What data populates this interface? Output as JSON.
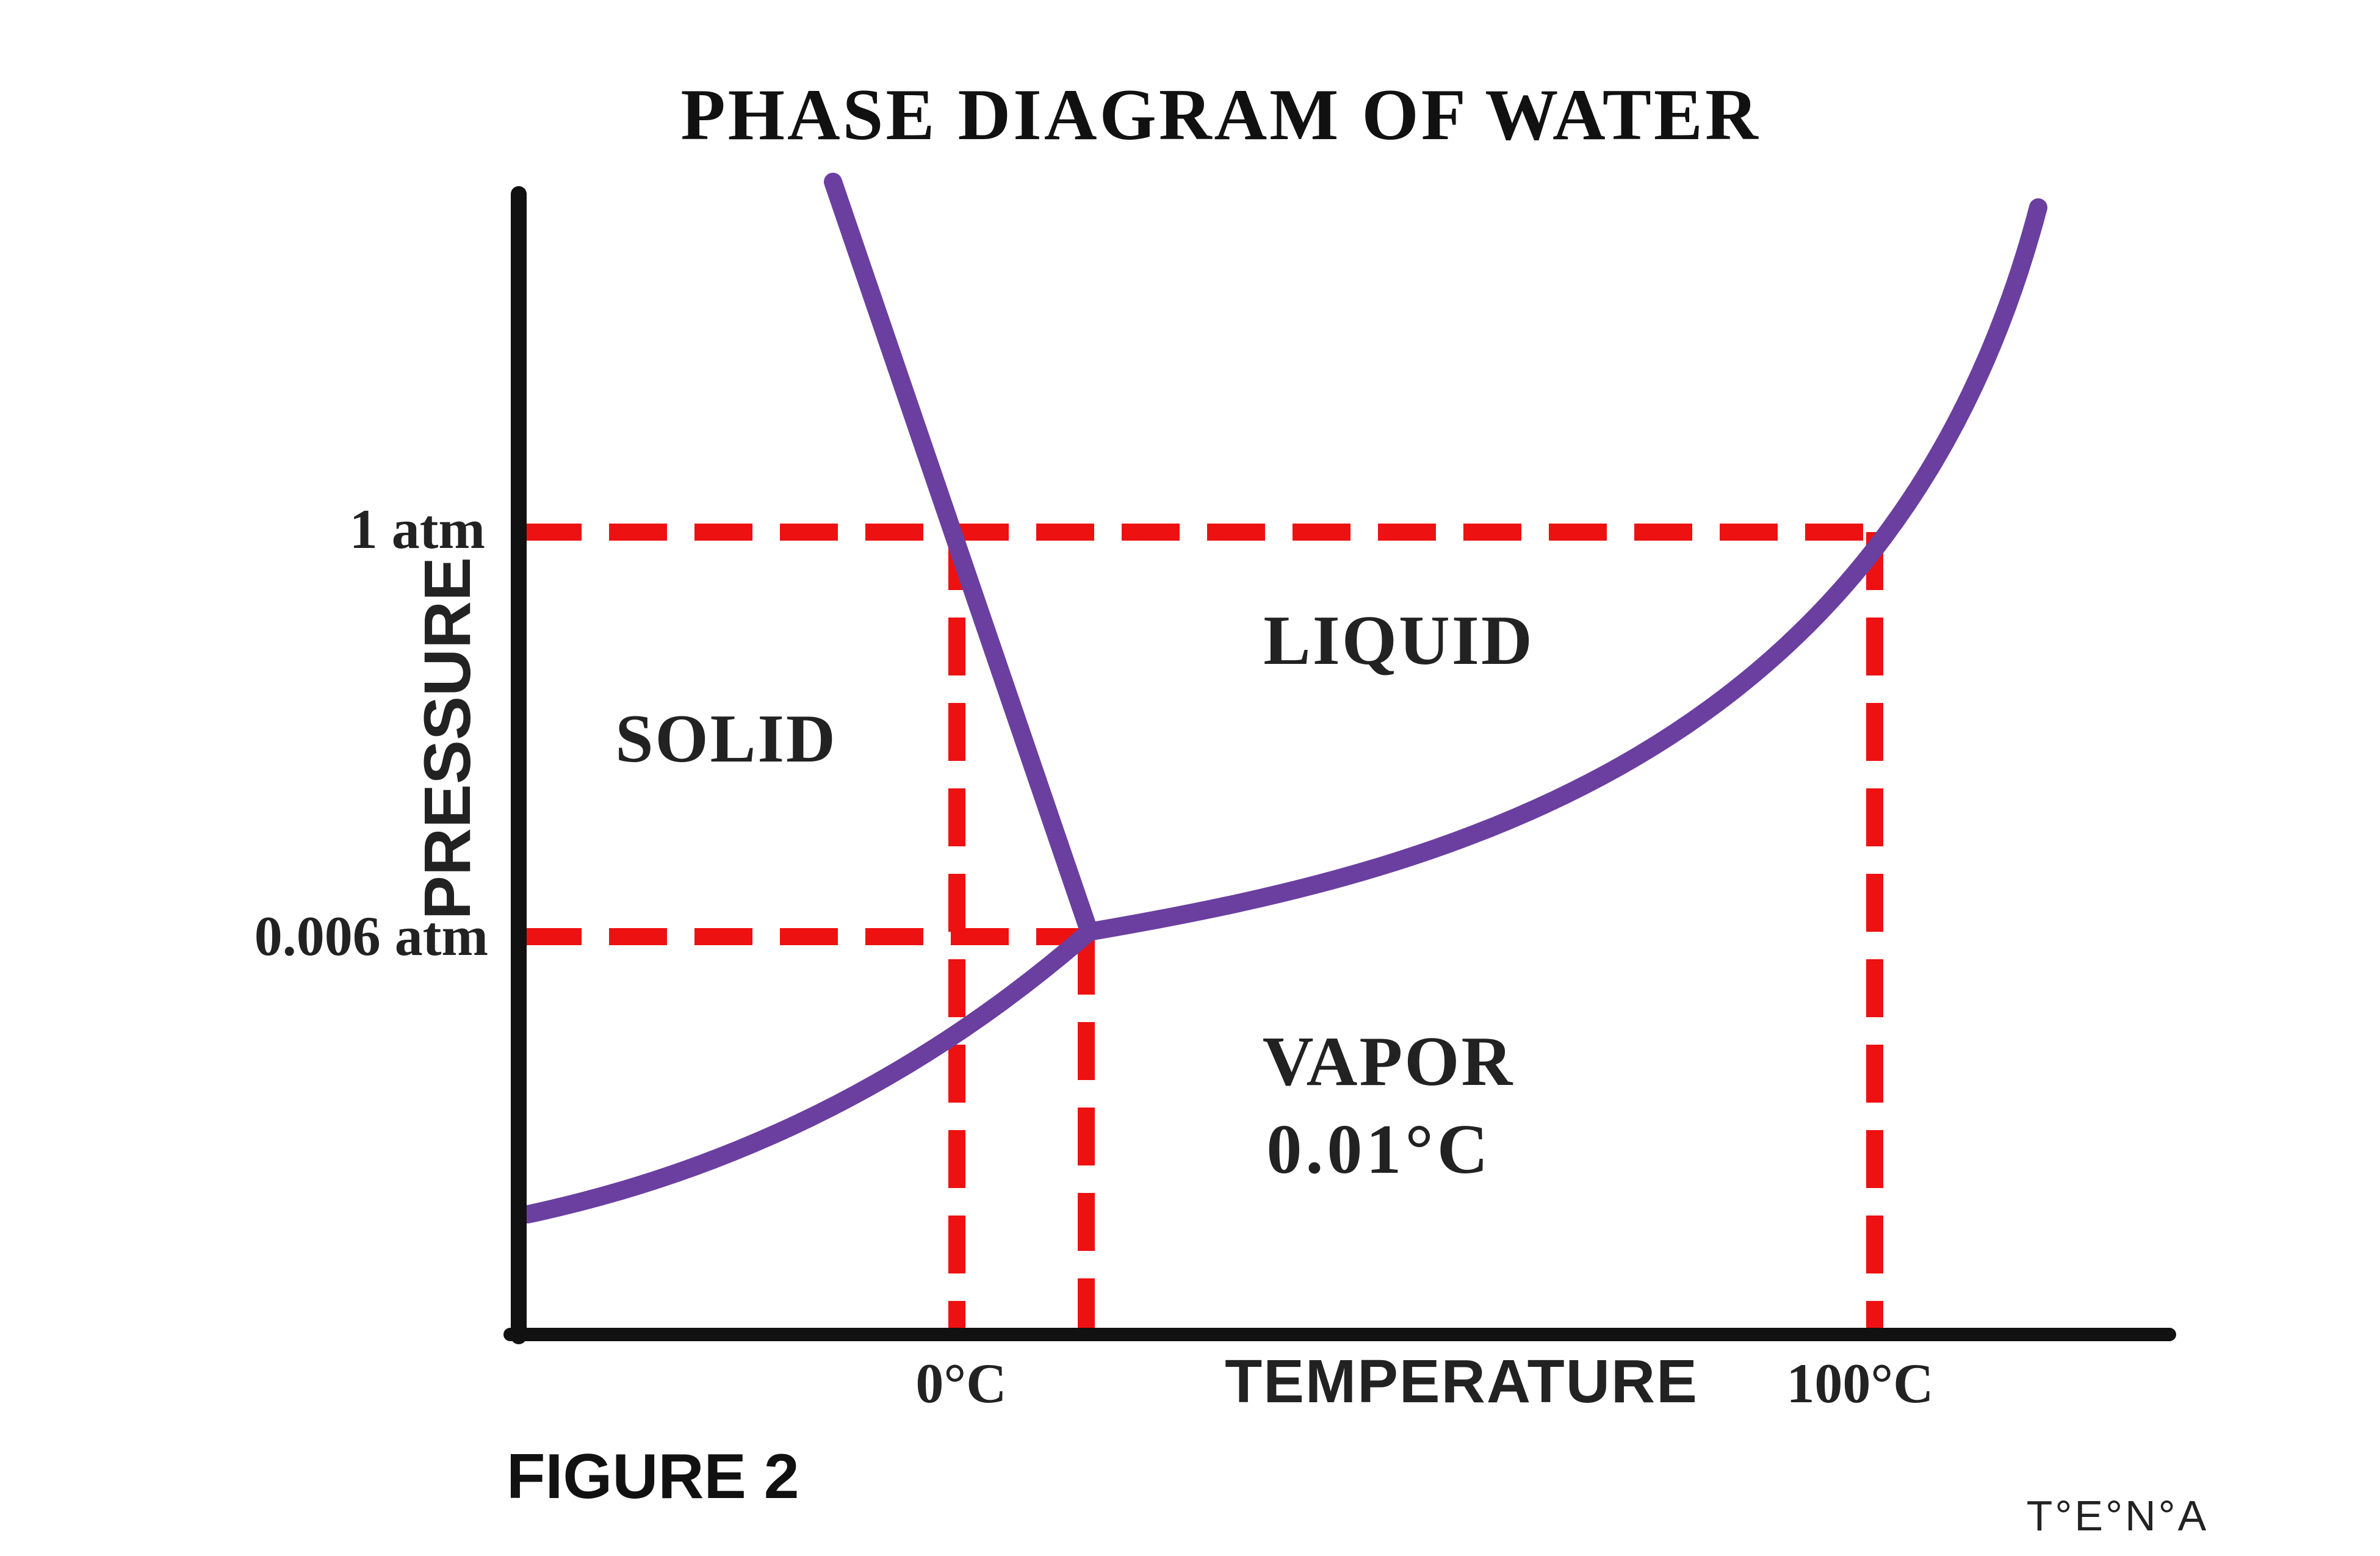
{
  "title": "PHASE DIAGRAM OF WATER",
  "axes": {
    "y_label": "PRESSURE",
    "x_label": "TEMPERATURE",
    "y_ticks": [
      "1 atm",
      "0.006 atm"
    ],
    "x_ticks": [
      "0°C",
      "100°C"
    ]
  },
  "regions": {
    "solid": "SOLID",
    "liquid": "LIQUID",
    "vapor": "VAPOR",
    "triple_point": "0.01°C"
  },
  "figure_label": "FIGURE 2",
  "credit": "T°E°N°A",
  "colors": {
    "curve": "#6a3fa0",
    "guide": "#ee1111",
    "axis": "#111111"
  }
}
